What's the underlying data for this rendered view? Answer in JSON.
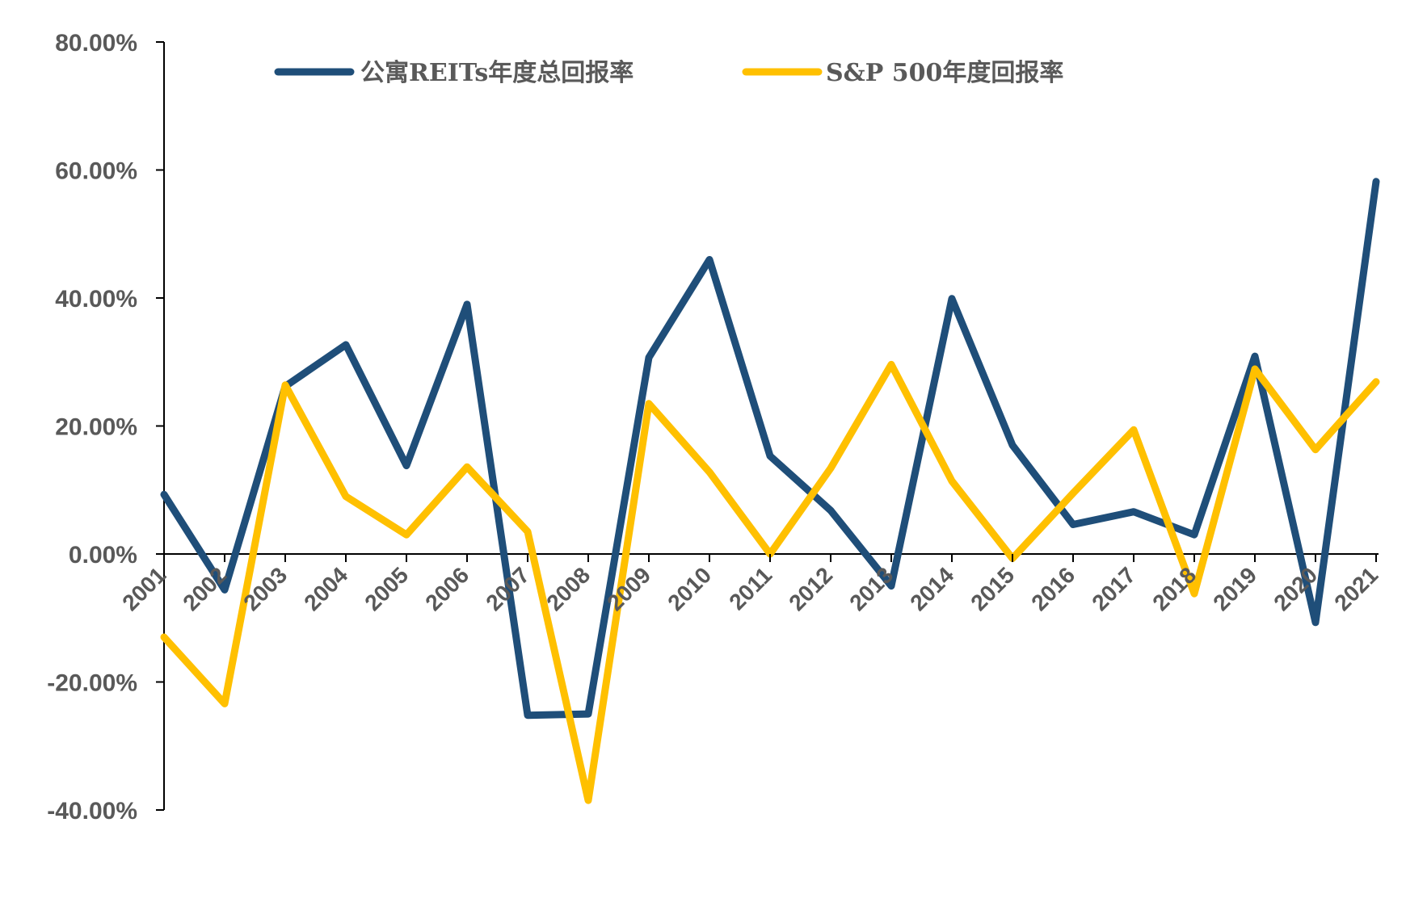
{
  "chart_data": {
    "type": "line",
    "categories": [
      "2001",
      "2002",
      "2003",
      "2004",
      "2005",
      "2006",
      "2007",
      "2008",
      "2009",
      "2010",
      "2011",
      "2012",
      "2013",
      "2014",
      "2015",
      "2016",
      "2017",
      "2018",
      "2019",
      "2020",
      "2021"
    ],
    "series": [
      {
        "name": "公寓REITs年度总回报率",
        "color": "#1f4e79",
        "values": [
          9.3,
          -5.6,
          26.2,
          32.7,
          13.8,
          39.0,
          -25.2,
          -25.0,
          30.7,
          46.0,
          15.3,
          6.8,
          -5.0,
          39.9,
          17.0,
          4.6,
          6.6,
          3.0,
          30.9,
          -10.7,
          58.2
        ]
      },
      {
        "name": "S&P 500年度回报率",
        "color": "#ffc000",
        "values": [
          -13.0,
          -23.4,
          26.4,
          9.0,
          3.0,
          13.6,
          3.5,
          -38.5,
          23.5,
          12.8,
          0.0,
          13.4,
          29.6,
          11.4,
          -0.7,
          9.5,
          19.4,
          -6.2,
          28.9,
          16.3,
          26.9
        ]
      }
    ],
    "yticks": [
      "80.00%",
      "60.00%",
      "40.00%",
      "20.00%",
      "0.00%",
      "-20.00%",
      "-40.00%"
    ],
    "ytick_values": [
      80,
      60,
      40,
      20,
      0,
      -20,
      -40
    ],
    "ylim": [
      -40,
      80
    ],
    "legend_position": "top",
    "grid": false
  }
}
